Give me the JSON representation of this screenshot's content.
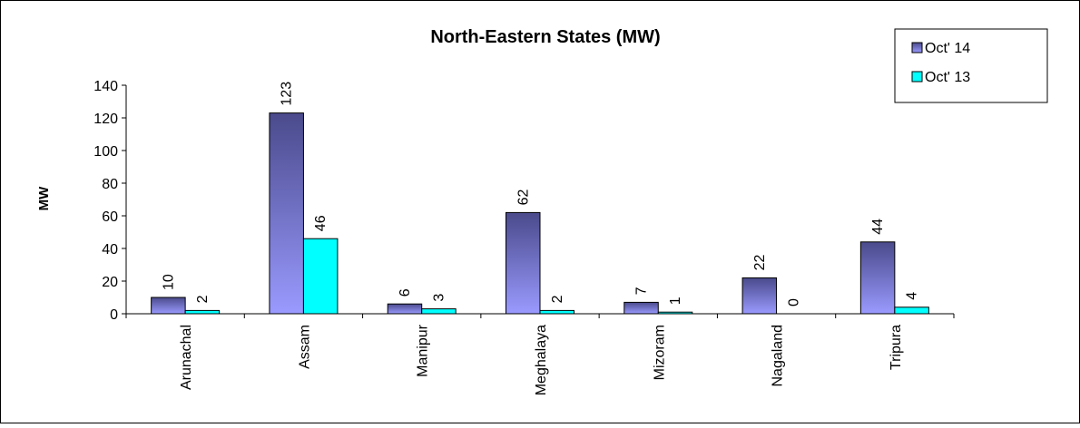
{
  "chart_data": {
    "type": "bar",
    "title": "North-Eastern States (MW)",
    "xlabel": "",
    "ylabel": "MW",
    "categories": [
      "Arunachal",
      "Assam",
      "Manipur",
      "Meghalaya",
      "Mizoram",
      "Nagaland",
      "Tripura"
    ],
    "series": [
      {
        "name": "Oct' 14",
        "values": [
          10,
          123,
          6,
          62,
          7,
          22,
          44
        ],
        "color": "#4a4a8c",
        "color_light": "#9a9aff"
      },
      {
        "name": "Oct' 13",
        "values": [
          2,
          46,
          3,
          2,
          1,
          0,
          4
        ],
        "color": "#00ffff"
      }
    ],
    "ylim": [
      0,
      140
    ],
    "yticks": [
      0,
      20,
      40,
      60,
      80,
      100,
      120,
      140
    ],
    "grid": false,
    "legend_position": "top-right",
    "data_labels": true
  }
}
